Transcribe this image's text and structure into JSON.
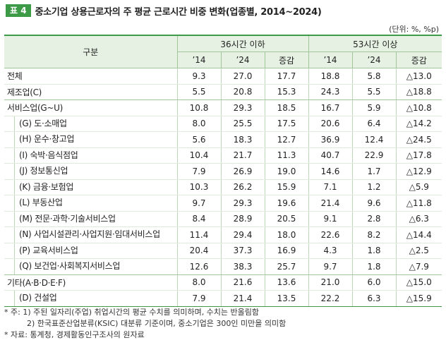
{
  "title_bar": {
    "badge": "표 4",
    "title": "중소기업 상용근로자의 주 평균 근로시간 비중 변화(업종별, 2014~2024)"
  },
  "unit": "(단위: %, %p)",
  "headers": {
    "category": "구분",
    "group1": "36시간 이하",
    "group2": "53시간 이상",
    "cols": [
      "’14",
      "’24",
      "증감",
      "’14",
      "’24",
      "증감"
    ]
  },
  "rows": [
    {
      "label": "전체",
      "values": [
        "9.3",
        "27.0",
        "17.7",
        "18.8",
        "5.8",
        "△13.0"
      ]
    },
    {
      "label": "제조업(C)",
      "values": [
        "5.5",
        "20.8",
        "15.3",
        "24.3",
        "5.5",
        "△18.8"
      ]
    },
    {
      "label": "서비스업(G~U)",
      "values": [
        "10.8",
        "29.3",
        "18.5",
        "16.7",
        "5.9",
        "△10.8"
      ]
    },
    {
      "label": "(G) 도·소매업",
      "values": [
        "8.0",
        "25.5",
        "17.5",
        "20.6",
        "6.4",
        "△14.2"
      ]
    },
    {
      "label": "(H) 운수·창고업",
      "values": [
        "5.6",
        "18.3",
        "12.7",
        "36.9",
        "12.4",
        "△24.5"
      ]
    },
    {
      "label": "(I) 숙박·음식점업",
      "values": [
        "10.4",
        "21.7",
        "11.3",
        "40.7",
        "22.9",
        "△17.8"
      ]
    },
    {
      "label": "(J) 정보통신업",
      "values": [
        "7.9",
        "26.9",
        "19.0",
        "14.6",
        "1.7",
        "△12.9"
      ]
    },
    {
      "label": "(K) 금융·보험업",
      "values": [
        "10.3",
        "26.2",
        "15.9",
        "7.1",
        "1.2",
        "△5.9"
      ]
    },
    {
      "label": "(L) 부동산업",
      "values": [
        "9.7",
        "29.3",
        "19.6",
        "21.4",
        "9.6",
        "△11.8"
      ]
    },
    {
      "label": "(M) 전문·과학·기술서비스업",
      "values": [
        "8.4",
        "28.9",
        "20.5",
        "9.1",
        "2.8",
        "△6.3"
      ]
    },
    {
      "label": "(N) 사업시설관리·사업지원·임대서비스업",
      "values": [
        "11.4",
        "29.4",
        "18.0",
        "22.6",
        "8.2",
        "△14.4"
      ]
    },
    {
      "label": "(P) 교육서비스업",
      "values": [
        "20.4",
        "37.3",
        "16.9",
        "4.3",
        "1.8",
        "△2.5"
      ]
    },
    {
      "label": "(Q) 보건업·사회복지서비스업",
      "values": [
        "12.6",
        "38.3",
        "25.7",
        "9.7",
        "1.8",
        "△7.9"
      ]
    },
    {
      "label": "기타(A·B·D·E·F)",
      "values": [
        "8.0",
        "21.6",
        "13.6",
        "21.0",
        "6.0",
        "△15.0"
      ]
    },
    {
      "label": "(D) 건설업",
      "values": [
        "7.9",
        "21.4",
        "13.5",
        "22.2",
        "6.3",
        "△15.9"
      ]
    }
  ],
  "notes": [
    "* 주: 1) 주된 일자리(주업) 취업시간의 평균 수치를 의미하며, 수치는 반올림함",
    "2) 한국표준산업분류(KSIC) 대분류 기준이며, 중소기업은 300인 미만을 의미함",
    "* 자료: 통계청, 경제활동인구조사의 원자료"
  ],
  "colors": {
    "accent": "#3d9a46",
    "header_bg": "#e6f1e3"
  }
}
